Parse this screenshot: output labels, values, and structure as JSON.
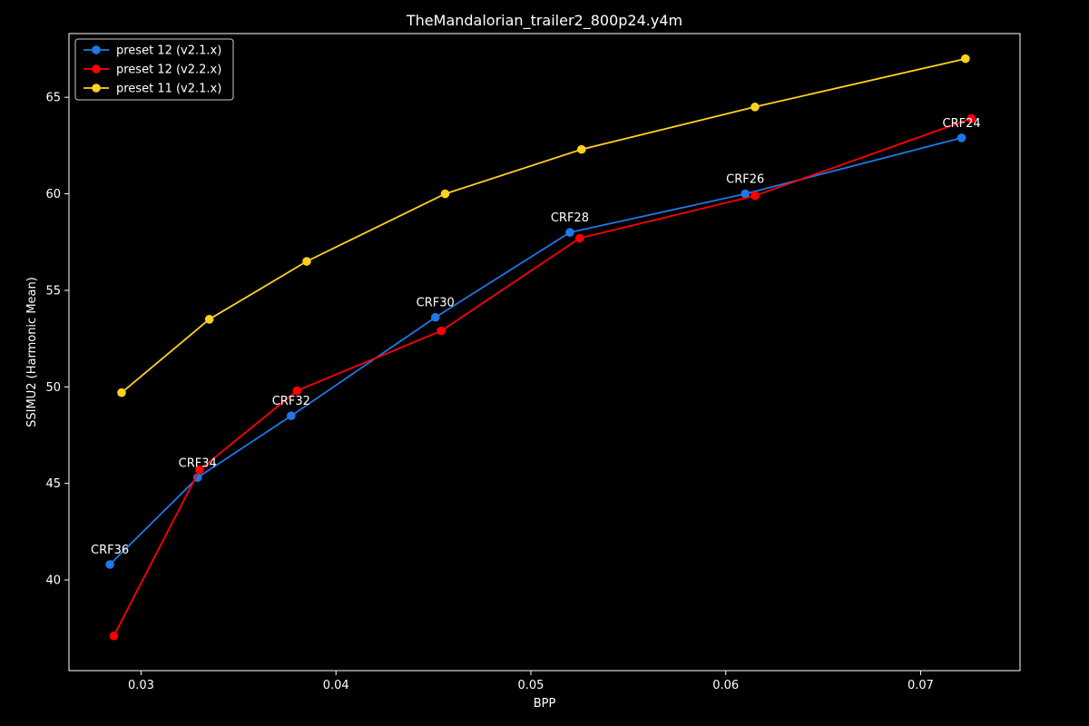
{
  "chart_data": {
    "type": "line",
    "title": "TheMandalorian_trailer2_800p24.y4m",
    "xlabel": "BPP",
    "ylabel": "SSIMU2 (Harmonic Mean)",
    "xlim": [
      0.0263,
      0.0751
    ],
    "ylim": [
      35.3,
      68.3
    ],
    "xticks": [
      0.03,
      0.04,
      0.05,
      0.06,
      0.07
    ],
    "xtick_labels": [
      "0.03",
      "0.04",
      "0.05",
      "0.06",
      "0.07"
    ],
    "yticks": [
      40,
      45,
      50,
      55,
      60,
      65
    ],
    "ytick_labels": [
      "40",
      "45",
      "50",
      "55",
      "60",
      "65"
    ],
    "grid": false,
    "legend_position": "top-left",
    "background": "#000000",
    "series": [
      {
        "name": "preset 12 (v2.1.x)",
        "color": "#1f78e6",
        "x": [
          0.0284,
          0.0329,
          0.0377,
          0.0451,
          0.052,
          0.061,
          0.0721
        ],
        "y": [
          40.8,
          45.3,
          48.5,
          53.6,
          58.0,
          60.0,
          62.9
        ]
      },
      {
        "name": "preset 12 (v2.2.x)",
        "color": "#ff0000",
        "x": [
          0.0286,
          0.033,
          0.038,
          0.0454,
          0.0525,
          0.0615,
          0.0726
        ],
        "y": [
          37.1,
          45.7,
          49.8,
          52.9,
          57.7,
          59.9,
          63.9
        ]
      },
      {
        "name": "preset 11 (v2.1.x)",
        "color": "#ffd21f",
        "x": [
          0.029,
          0.0335,
          0.0385,
          0.0456,
          0.0526,
          0.0615,
          0.0723
        ],
        "y": [
          49.7,
          53.5,
          56.5,
          60.0,
          62.3,
          64.5,
          67.0
        ]
      }
    ],
    "annotations": [
      {
        "text": "CRF36",
        "x": 0.0284,
        "y": 40.8
      },
      {
        "text": "CRF34",
        "x": 0.0329,
        "y": 45.3
      },
      {
        "text": "CRF32",
        "x": 0.0377,
        "y": 48.5
      },
      {
        "text": "CRF30",
        "x": 0.0451,
        "y": 53.6
      },
      {
        "text": "CRF28",
        "x": 0.052,
        "y": 58.0
      },
      {
        "text": "CRF26",
        "x": 0.061,
        "y": 60.0
      },
      {
        "text": "CRF24",
        "x": 0.0721,
        "y": 62.9
      }
    ]
  }
}
